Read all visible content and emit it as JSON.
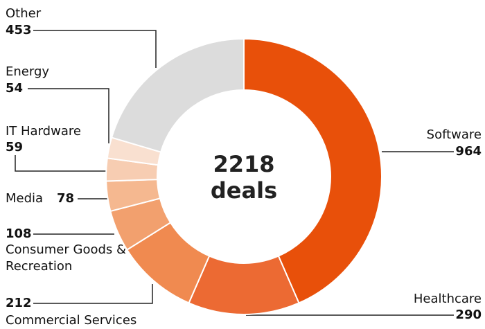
{
  "chart_data": {
    "type": "donut",
    "categories": [
      "Software",
      "Healthcare",
      "Commercial Services",
      "Consumer Goods & Recreation",
      "Media",
      "IT Hardware",
      "Energy",
      "Other"
    ],
    "values": [
      964,
      290,
      212,
      108,
      78,
      59,
      54,
      453
    ],
    "colors": [
      "#e8500a",
      "#ec6a33",
      "#f08a50",
      "#f2a06e",
      "#f5b890",
      "#f7cdb2",
      "#f9e0d0",
      "#dcdcdc"
    ],
    "total": 2218,
    "total_label": "deals"
  }
}
